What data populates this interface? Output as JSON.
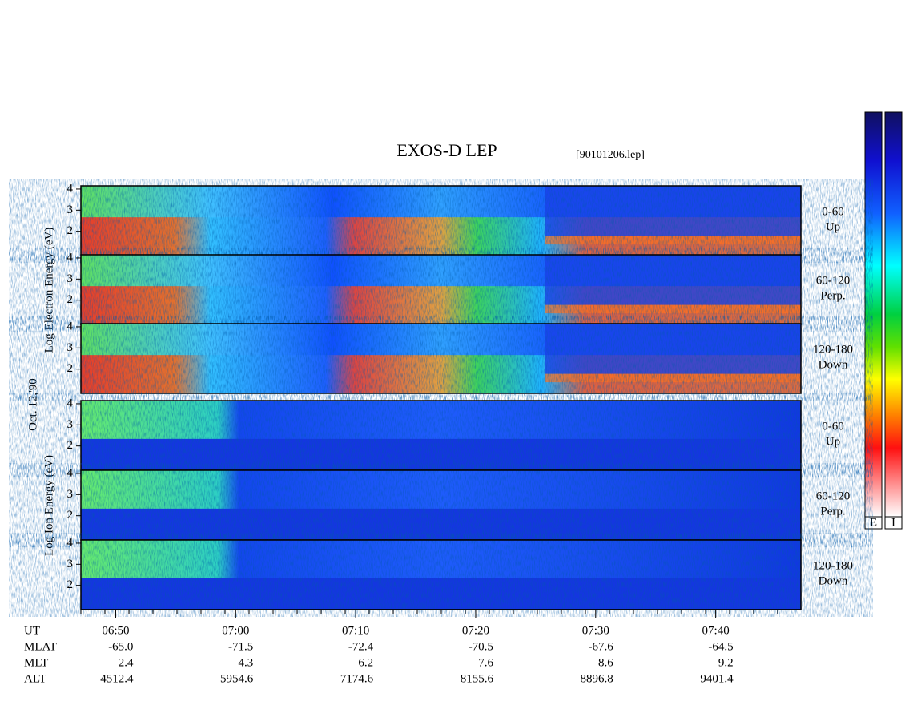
{
  "title": "EXOS-D LEP",
  "file": "[90101206.lep]",
  "date": "Oct. 12,'90",
  "electron": {
    "ylabel": "Log Electron Energy (eV)",
    "panels": [
      {
        "pitch": "0-60",
        "dir": "Up"
      },
      {
        "pitch": "60-120",
        "dir": "Perp."
      },
      {
        "pitch": "120-180",
        "dir": "Down"
      }
    ]
  },
  "ion": {
    "ylabel": "Log Ion Energy (eV)",
    "panels": [
      {
        "pitch": "0-60",
        "dir": "Up"
      },
      {
        "pitch": "60-120",
        "dir": "Perp."
      },
      {
        "pitch": "120-180",
        "dir": "Down"
      }
    ]
  },
  "energy_axis": {
    "ylim": [
      0.85,
      4.15
    ],
    "yticks": [
      2,
      3,
      4
    ]
  },
  "time_axis": {
    "xlim": [
      407.1,
      467.1
    ],
    "xticks": [
      {
        "value": 410,
        "label": "06:50"
      },
      {
        "value": 420,
        "label": "07:00"
      },
      {
        "value": 430,
        "label": "07:10"
      },
      {
        "value": 440,
        "label": "07:20"
      },
      {
        "value": 450,
        "label": "07:30"
      },
      {
        "value": 460,
        "label": "07:40"
      }
    ]
  },
  "ephemeris": {
    "ut_label": "UT",
    "rows": [
      {
        "name": "MLAT",
        "values": [
          "-65.0",
          "-71.5",
          "-72.4",
          "-70.5",
          "-67.6",
          "-64.5"
        ]
      },
      {
        "name": "MLT",
        "values": [
          "2.4",
          "4.3",
          "6.2",
          "7.6",
          "8.6",
          "9.2"
        ]
      },
      {
        "name": "ALT",
        "values": [
          "4512.4",
          "5954.6",
          "7174.6",
          "8155.6",
          "8896.8",
          "9401.4"
        ]
      }
    ]
  },
  "colorbar": {
    "labels": [
      "E",
      "I"
    ]
  }
}
